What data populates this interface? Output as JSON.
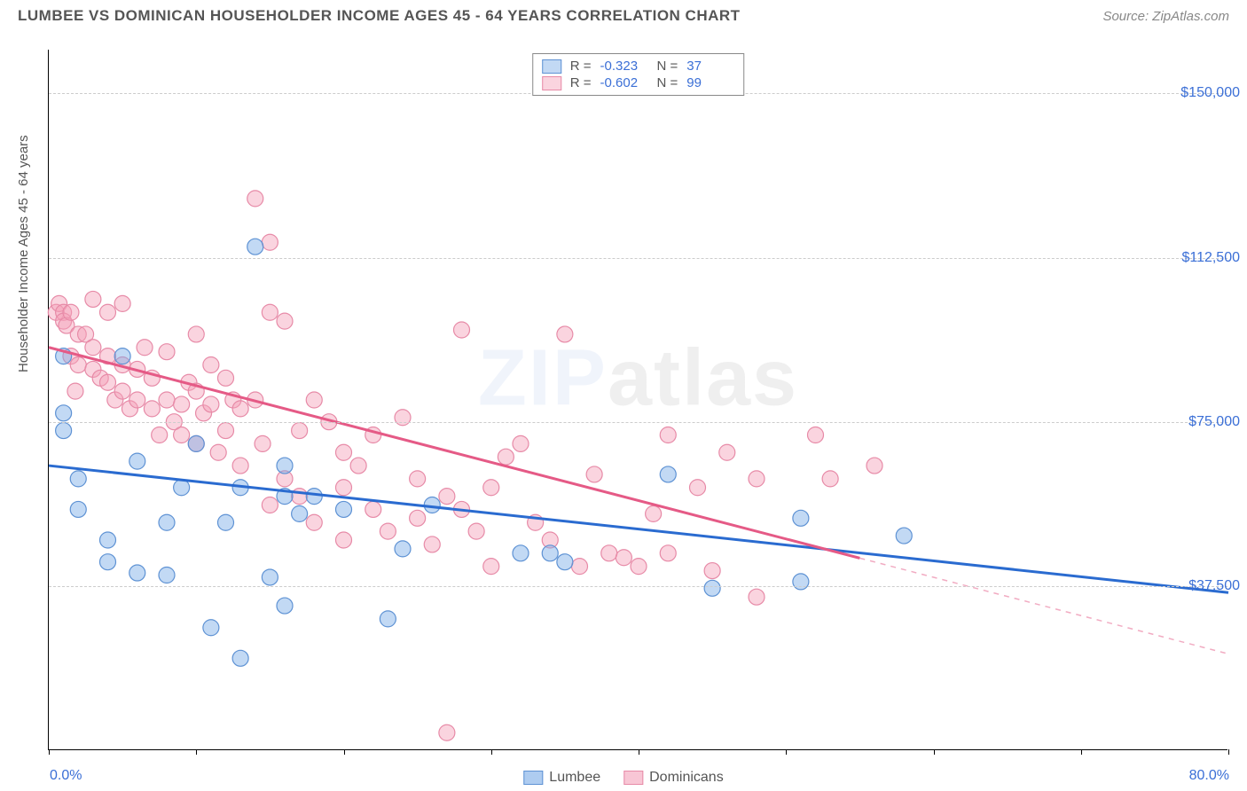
{
  "header": {
    "title": "LUMBEE VS DOMINICAN HOUSEHOLDER INCOME AGES 45 - 64 YEARS CORRELATION CHART",
    "source": "Source: ZipAtlas.com"
  },
  "chart": {
    "type": "scatter",
    "ylabel": "Householder Income Ages 45 - 64 years",
    "xlim": [
      0,
      80
    ],
    "ylim": [
      0,
      160000
    ],
    "xtick_labels": {
      "min": "0.0%",
      "max": "80.0%"
    },
    "xtick_positions_pct": [
      0,
      10,
      20,
      30,
      40,
      50,
      60,
      70,
      80
    ],
    "ytick_positions": [
      37500,
      75000,
      112500,
      150000
    ],
    "ytick_labels": [
      "$37,500",
      "$75,000",
      "$112,500",
      "$150,000"
    ],
    "grid_color": "#cccccc",
    "background_color": "#ffffff",
    "axis_color": "#000000",
    "label_color": "#555555",
    "tick_label_color": "#3b6fd6",
    "marker_radius": 9,
    "marker_stroke_width": 1.2,
    "line_width": 3,
    "series": [
      {
        "name": "Lumbee",
        "fill_color": "rgba(120,170,230,0.45)",
        "stroke_color": "#5e92d4",
        "line_color": "#2a6bd0",
        "R": "-0.323",
        "N": "37",
        "trend": {
          "x1": 0,
          "y1": 65000,
          "x2": 80,
          "y2": 36000,
          "dash_after_x": null
        },
        "points": [
          [
            1,
            90000
          ],
          [
            1,
            77000
          ],
          [
            1,
            73000
          ],
          [
            2,
            62000
          ],
          [
            4,
            48000
          ],
          [
            4,
            43000
          ],
          [
            5,
            90000
          ],
          [
            6,
            40500
          ],
          [
            8,
            40000
          ],
          [
            8,
            52000
          ],
          [
            9,
            60000
          ],
          [
            10,
            70000
          ],
          [
            11,
            28000
          ],
          [
            12,
            52000
          ],
          [
            13,
            60000
          ],
          [
            13,
            21000
          ],
          [
            14,
            115000
          ],
          [
            15,
            39500
          ],
          [
            16,
            33000
          ],
          [
            16,
            58000
          ],
          [
            17,
            54000
          ],
          [
            18,
            58000
          ],
          [
            20,
            55000
          ],
          [
            23,
            30000
          ],
          [
            24,
            46000
          ],
          [
            26,
            56000
          ],
          [
            32,
            45000
          ],
          [
            34,
            45000
          ],
          [
            35,
            43000
          ],
          [
            42,
            63000
          ],
          [
            45,
            37000
          ],
          [
            51,
            38500
          ],
          [
            51,
            53000
          ],
          [
            58,
            49000
          ],
          [
            16,
            65000
          ],
          [
            6,
            66000
          ],
          [
            2,
            55000
          ]
        ]
      },
      {
        "name": "Dominicans",
        "fill_color": "rgba(244,160,185,0.45)",
        "stroke_color": "#e78aa7",
        "line_color": "#e55a86",
        "R": "-0.602",
        "N": "99",
        "trend": {
          "x1": 0,
          "y1": 92000,
          "x2": 80,
          "y2": 22000,
          "dash_after_x": 55
        },
        "points": [
          [
            0.5,
            100000
          ],
          [
            0.7,
            102000
          ],
          [
            1,
            100000
          ],
          [
            1,
            98000
          ],
          [
            1.2,
            97000
          ],
          [
            1.5,
            100000
          ],
          [
            1.5,
            90000
          ],
          [
            1.8,
            82000
          ],
          [
            2,
            95000
          ],
          [
            2,
            88000
          ],
          [
            2.5,
            95000
          ],
          [
            3,
            103000
          ],
          [
            3,
            92000
          ],
          [
            3,
            87000
          ],
          [
            3.5,
            85000
          ],
          [
            4,
            100000
          ],
          [
            4,
            90000
          ],
          [
            4,
            84000
          ],
          [
            4.5,
            80000
          ],
          [
            5,
            102000
          ],
          [
            5,
            88000
          ],
          [
            5,
            82000
          ],
          [
            5.5,
            78000
          ],
          [
            6,
            87000
          ],
          [
            6,
            80000
          ],
          [
            6.5,
            92000
          ],
          [
            7,
            85000
          ],
          [
            7,
            78000
          ],
          [
            7.5,
            72000
          ],
          [
            8,
            91000
          ],
          [
            8,
            80000
          ],
          [
            8.5,
            75000
          ],
          [
            9,
            79000
          ],
          [
            9,
            72000
          ],
          [
            9.5,
            84000
          ],
          [
            10,
            95000
          ],
          [
            10,
            82000
          ],
          [
            10,
            70000
          ],
          [
            10.5,
            77000
          ],
          [
            11,
            88000
          ],
          [
            11,
            79000
          ],
          [
            11.5,
            68000
          ],
          [
            12,
            85000
          ],
          [
            12,
            73000
          ],
          [
            12.5,
            80000
          ],
          [
            13,
            78000
          ],
          [
            13,
            65000
          ],
          [
            14,
            126000
          ],
          [
            14,
            80000
          ],
          [
            14.5,
            70000
          ],
          [
            15,
            100000
          ],
          [
            15,
            56000
          ],
          [
            15,
            116000
          ],
          [
            16,
            98000
          ],
          [
            16,
            62000
          ],
          [
            17,
            73000
          ],
          [
            17,
            58000
          ],
          [
            18,
            80000
          ],
          [
            18,
            52000
          ],
          [
            19,
            75000
          ],
          [
            20,
            68000
          ],
          [
            20,
            60000
          ],
          [
            20,
            48000
          ],
          [
            21,
            65000
          ],
          [
            22,
            72000
          ],
          [
            22,
            55000
          ],
          [
            23,
            50000
          ],
          [
            24,
            76000
          ],
          [
            25,
            53000
          ],
          [
            25,
            62000
          ],
          [
            26,
            47000
          ],
          [
            27,
            58000
          ],
          [
            27,
            4000
          ],
          [
            28,
            55000
          ],
          [
            28,
            96000
          ],
          [
            29,
            50000
          ],
          [
            30,
            60000
          ],
          [
            30,
            42000
          ],
          [
            31,
            67000
          ],
          [
            32,
            70000
          ],
          [
            33,
            52000
          ],
          [
            34,
            48000
          ],
          [
            35,
            95000
          ],
          [
            36,
            42000
          ],
          [
            37,
            63000
          ],
          [
            38,
            45000
          ],
          [
            39,
            44000
          ],
          [
            40,
            42000
          ],
          [
            41,
            54000
          ],
          [
            42,
            45000
          ],
          [
            42,
            72000
          ],
          [
            44,
            60000
          ],
          [
            45,
            41000
          ],
          [
            46,
            68000
          ],
          [
            48,
            62000
          ],
          [
            48,
            35000
          ],
          [
            52,
            72000
          ],
          [
            53,
            62000
          ],
          [
            56,
            65000
          ]
        ]
      }
    ],
    "legend_bottom": [
      {
        "label": "Lumbee",
        "color": "rgba(120,170,230,0.6)",
        "border": "#5e92d4"
      },
      {
        "label": "Dominicans",
        "color": "rgba(244,160,185,0.6)",
        "border": "#e78aa7"
      }
    ],
    "watermark": {
      "part1": "ZIP",
      "part2": "atlas"
    }
  }
}
